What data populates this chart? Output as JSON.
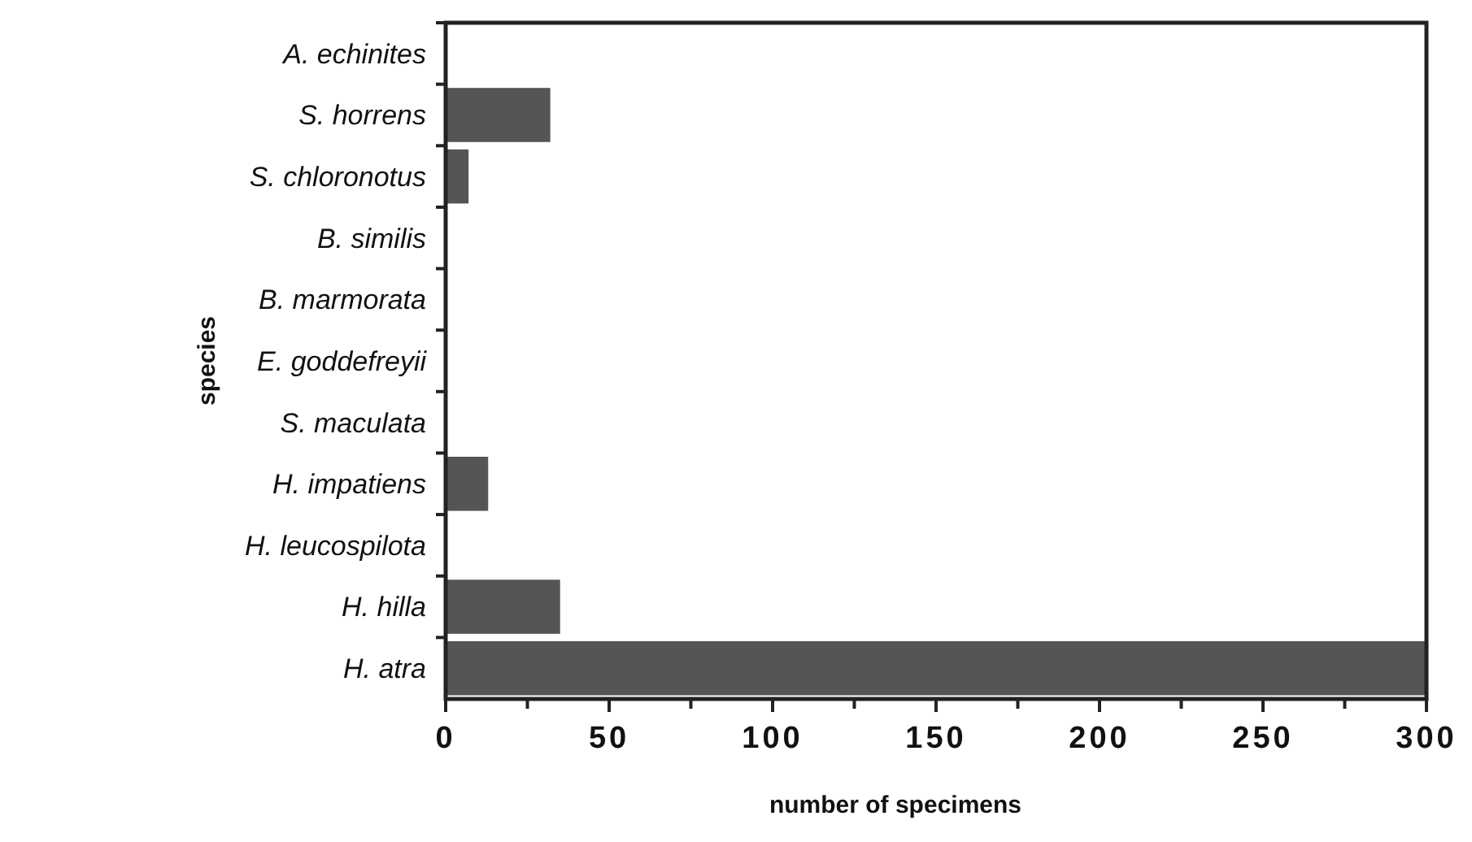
{
  "chart_data": {
    "type": "bar",
    "orientation": "horizontal",
    "xlabel": "number of specimens",
    "ylabel": "species",
    "categories": [
      "A. echinites",
      "S. horrens",
      "S. chloronotus",
      "B. similis",
      "B. marmorata",
      "E. goddefreyii",
      "S. maculata",
      "H. impatiens",
      "H. leucospilota",
      "H. hilla",
      "H. atra"
    ],
    "values": [
      0,
      32,
      7,
      0,
      0,
      0,
      0,
      13,
      0,
      35,
      300
    ],
    "color": "#555555",
    "xlim": [
      0,
      300
    ],
    "xticks": [
      0,
      {
        "value": 25,
        "label": null
      },
      50,
      {
        "value": 75,
        "label": null
      },
      100,
      {
        "value": 125,
        "label": null
      },
      150,
      {
        "value": 175,
        "label": null
      },
      200,
      {
        "value": 225,
        "label": null
      },
      250,
      {
        "value": 275,
        "label": null
      },
      300
    ],
    "grid": false
  }
}
